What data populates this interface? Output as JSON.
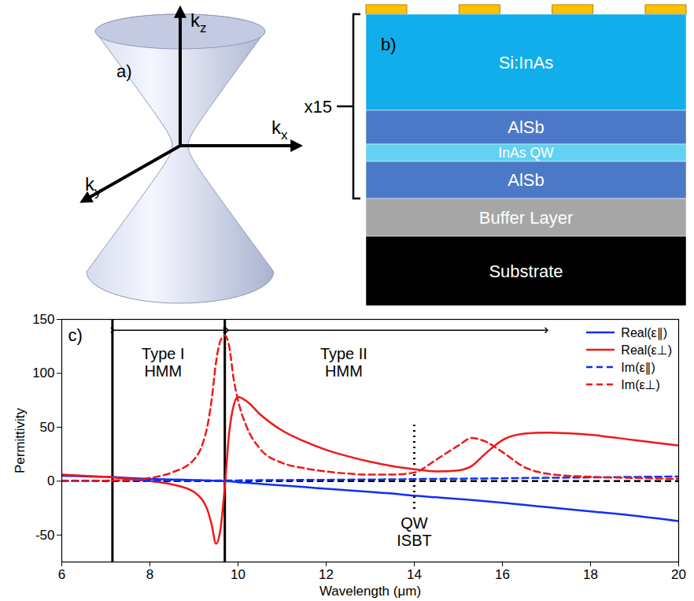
{
  "panels": {
    "a": {
      "letter": "a)",
      "axes": [
        {
          "base": "k",
          "sub": "z"
        },
        {
          "base": "k",
          "sub": "x"
        },
        {
          "base": "k",
          "sub": "y"
        }
      ]
    },
    "b": {
      "letter": "b)",
      "repeat_label": "x15",
      "grating": {
        "color": "#FFC000",
        "count": 4
      },
      "layers": [
        {
          "label": "Si:InAs",
          "color": "#12AEEB",
          "repeated": true
        },
        {
          "label": "AlSb",
          "color": "#4C78C8",
          "repeated": true
        },
        {
          "label": "InAs QW",
          "color": "#62D2F2",
          "repeated": true
        },
        {
          "label": "AlSb",
          "color": "#4C78C8",
          "repeated": true
        },
        {
          "label": "Buffer Layer",
          "color": "#A6A6A6",
          "repeated": false
        },
        {
          "label": "Substrate",
          "color": "#000000",
          "repeated": false
        }
      ]
    }
  },
  "chart_data": {
    "type": "line",
    "panel_label": "c)",
    "x_label": "Wavelength (μm)",
    "y_label": "Permittivity",
    "xlim": [
      6,
      20
    ],
    "ylim": [
      -75,
      150
    ],
    "xticks": [
      6,
      8,
      10,
      12,
      14,
      16,
      18,
      20
    ],
    "yticks": [
      -50,
      0,
      50,
      100,
      150
    ],
    "grid": false,
    "legend": "top-right",
    "x": [
      6,
      6.5,
      7,
      7.5,
      8,
      8.5,
      9,
      9.2,
      9.3,
      9.4,
      9.5,
      9.6,
      9.7,
      9.8,
      9.9,
      10,
      10.2,
      10.5,
      11,
      11.5,
      12,
      12.5,
      13,
      13.5,
      14,
      14.5,
      15,
      15.3,
      15.6,
      16,
      16.5,
      17,
      18,
      19,
      20
    ],
    "series": [
      {
        "name": "Real(ε∥)",
        "color": "#1030F0",
        "line_style": "solid",
        "values": [
          5,
          4.5,
          4,
          3,
          2,
          1.5,
          1,
          0.8,
          0.6,
          0.4,
          0.3,
          0.1,
          0,
          -0.2,
          -0.5,
          -1,
          -1.5,
          -2.5,
          -4,
          -5.5,
          -7,
          -8.5,
          -10,
          -11.5,
          -13.5,
          -15,
          -16.5,
          -17.5,
          -18.5,
          -20,
          -22,
          -24,
          -28,
          -32,
          -37
        ]
      },
      {
        "name": "Real(ε⊥)",
        "color": "#F01818",
        "line_style": "solid",
        "values": [
          6,
          5,
          4,
          2,
          0,
          -3,
          -10,
          -18,
          -26,
          -40,
          -58,
          -45,
          -5,
          45,
          70,
          78,
          74,
          62,
          47,
          37,
          29,
          23,
          18,
          14,
          11,
          9,
          10,
          14,
          25,
          38,
          44,
          45,
          43,
          38,
          33
        ]
      },
      {
        "name": "Im(ε∥)",
        "color": "#1030F0",
        "line_style": "dashed",
        "values": [
          0.5,
          0.5,
          0.5,
          0.5,
          0.5,
          0.5,
          0.5,
          0.6,
          0.6,
          0.6,
          0.6,
          0.6,
          0.6,
          0.7,
          0.7,
          0.7,
          0.8,
          0.9,
          1,
          1.1,
          1.2,
          1.4,
          1.5,
          1.7,
          1.9,
          2.1,
          2.3,
          2.4,
          2.5,
          2.7,
          2.9,
          3.1,
          3.5,
          3.9,
          4.3
        ]
      },
      {
        "name": "Im(ε⊥)",
        "color": "#F01818",
        "line_style": "dashed",
        "values": [
          0,
          0,
          0.5,
          1,
          3,
          8,
          20,
          35,
          50,
          75,
          110,
          130,
          135,
          125,
          95,
          75,
          50,
          30,
          17,
          12,
          9,
          7,
          6,
          6,
          8,
          20,
          33,
          40,
          37,
          27,
          13,
          7,
          4,
          3,
          2
        ]
      }
    ],
    "rules": [
      {
        "y": 0,
        "color": "#000000",
        "line_style": "dashed"
      },
      {
        "x": 7.15,
        "color": "#000000",
        "line_style": "solid"
      },
      {
        "x": 9.7,
        "color": "#000000",
        "line_style": "solid"
      },
      {
        "x": 14,
        "y": [
          -26,
          52
        ],
        "color": "#000000",
        "line_style": "dotted"
      }
    ],
    "arrows": [
      {
        "x": [
          7.15,
          9.7
        ],
        "y": 140
      },
      {
        "x": [
          9.75,
          17
        ],
        "y": 140
      }
    ],
    "annotations": [
      {
        "text": [
          "Type I",
          "HMM"
        ],
        "x": 8.3,
        "y": 110
      },
      {
        "text": [
          "Type II",
          "HMM"
        ],
        "x": 12.4,
        "y": 110
      },
      {
        "text": [
          "QW",
          "ISBT"
        ],
        "x": 14,
        "y": -47
      }
    ]
  }
}
